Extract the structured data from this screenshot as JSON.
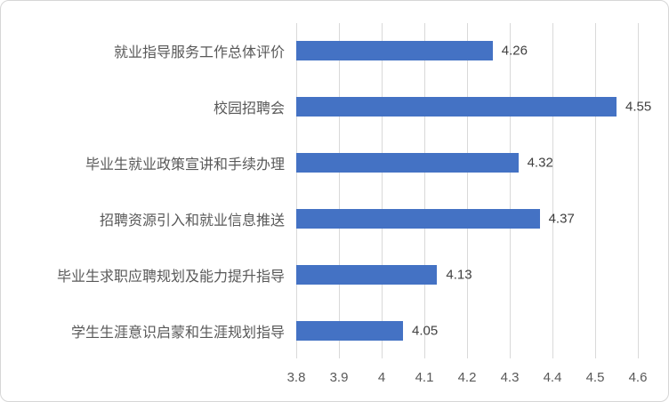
{
  "chart_data": {
    "type": "bar",
    "orientation": "horizontal",
    "title": "",
    "xlabel": "",
    "ylabel": "",
    "categories": [
      "就业指导服务工作总体评价",
      "校园招聘会",
      "毕业生就业政策宣讲和手续办理",
      "招聘资源引入和就业信息推送",
      "毕业生求职应聘规划及能力提升指导",
      "学生生涯意识启蒙和生涯规划指导"
    ],
    "values": [
      4.26,
      4.55,
      4.32,
      4.37,
      4.13,
      4.05
    ],
    "value_labels": [
      "4.26",
      "4.55",
      "4.32",
      "4.37",
      "4.13",
      "4.05"
    ],
    "xlim": [
      3.8,
      4.6
    ],
    "x_ticks": [
      {
        "value": 3.8,
        "label": "3.8"
      },
      {
        "value": 3.9,
        "label": "3.9"
      },
      {
        "value": 4.0,
        "label": "4"
      },
      {
        "value": 4.1,
        "label": "4.1"
      },
      {
        "value": 4.2,
        "label": "4.2"
      },
      {
        "value": 4.3,
        "label": "4.3"
      },
      {
        "value": 4.4,
        "label": "4.4"
      },
      {
        "value": 4.5,
        "label": "4.5"
      },
      {
        "value": 4.6,
        "label": "4.6"
      }
    ],
    "grid": "vertical",
    "legend": "none",
    "colors": {
      "bar": "#4472C4",
      "gridline": "#d9d9d9",
      "category_text": "#595959",
      "tick_text": "#595959",
      "data_label_text": "#404040",
      "background": "#ffffff",
      "border": "#d6d6d6"
    }
  }
}
